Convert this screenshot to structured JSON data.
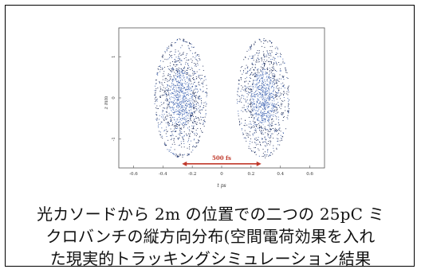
{
  "figure": {
    "xlabel": "t ps",
    "ylabel": "z mm",
    "x_ticks": [
      "-0.6",
      "-0.4",
      "-0.2",
      "0",
      "0.2",
      "0.4",
      "0.6"
    ],
    "y_ticks": [
      "1",
      "0",
      "-1"
    ],
    "annotation": "500 fs",
    "annotation_color": "#c0392b",
    "dot_colors": [
      "#0b1a4a",
      "#2a4f9e",
      "#6f8fd0"
    ]
  },
  "chart_data": {
    "type": "scatter",
    "title": "",
    "xlabel": "t ps",
    "ylabel": "z mm",
    "xlim": [
      -0.7,
      0.7
    ],
    "ylim": [
      -1.7,
      1.7
    ],
    "x_ticks": [
      -0.6,
      -0.4,
      -0.2,
      0,
      0.2,
      0.4,
      0.6
    ],
    "y_ticks": [
      -1,
      0,
      1
    ],
    "series": [
      {
        "center_x": -0.28,
        "center_y": 0.0,
        "half_width_x": 0.18,
        "half_width_y": 1.45
      },
      {
        "center_x": 0.28,
        "center_y": 0.0,
        "half_width_x": 0.18,
        "half_width_y": 1.45
      }
    ],
    "annotations": [
      {
        "text": "500 fs",
        "x_start": -0.27,
        "x_end": 0.27,
        "y": -1.6
      }
    ]
  },
  "caption": {
    "line1": "光カソードから 2m の位置での二つの 25pC ミ",
    "line2": "クロバンチの縦方向分布(空間電荷効果を入れ",
    "line3": "た現実的トラッキングシミュレーション結果"
  }
}
